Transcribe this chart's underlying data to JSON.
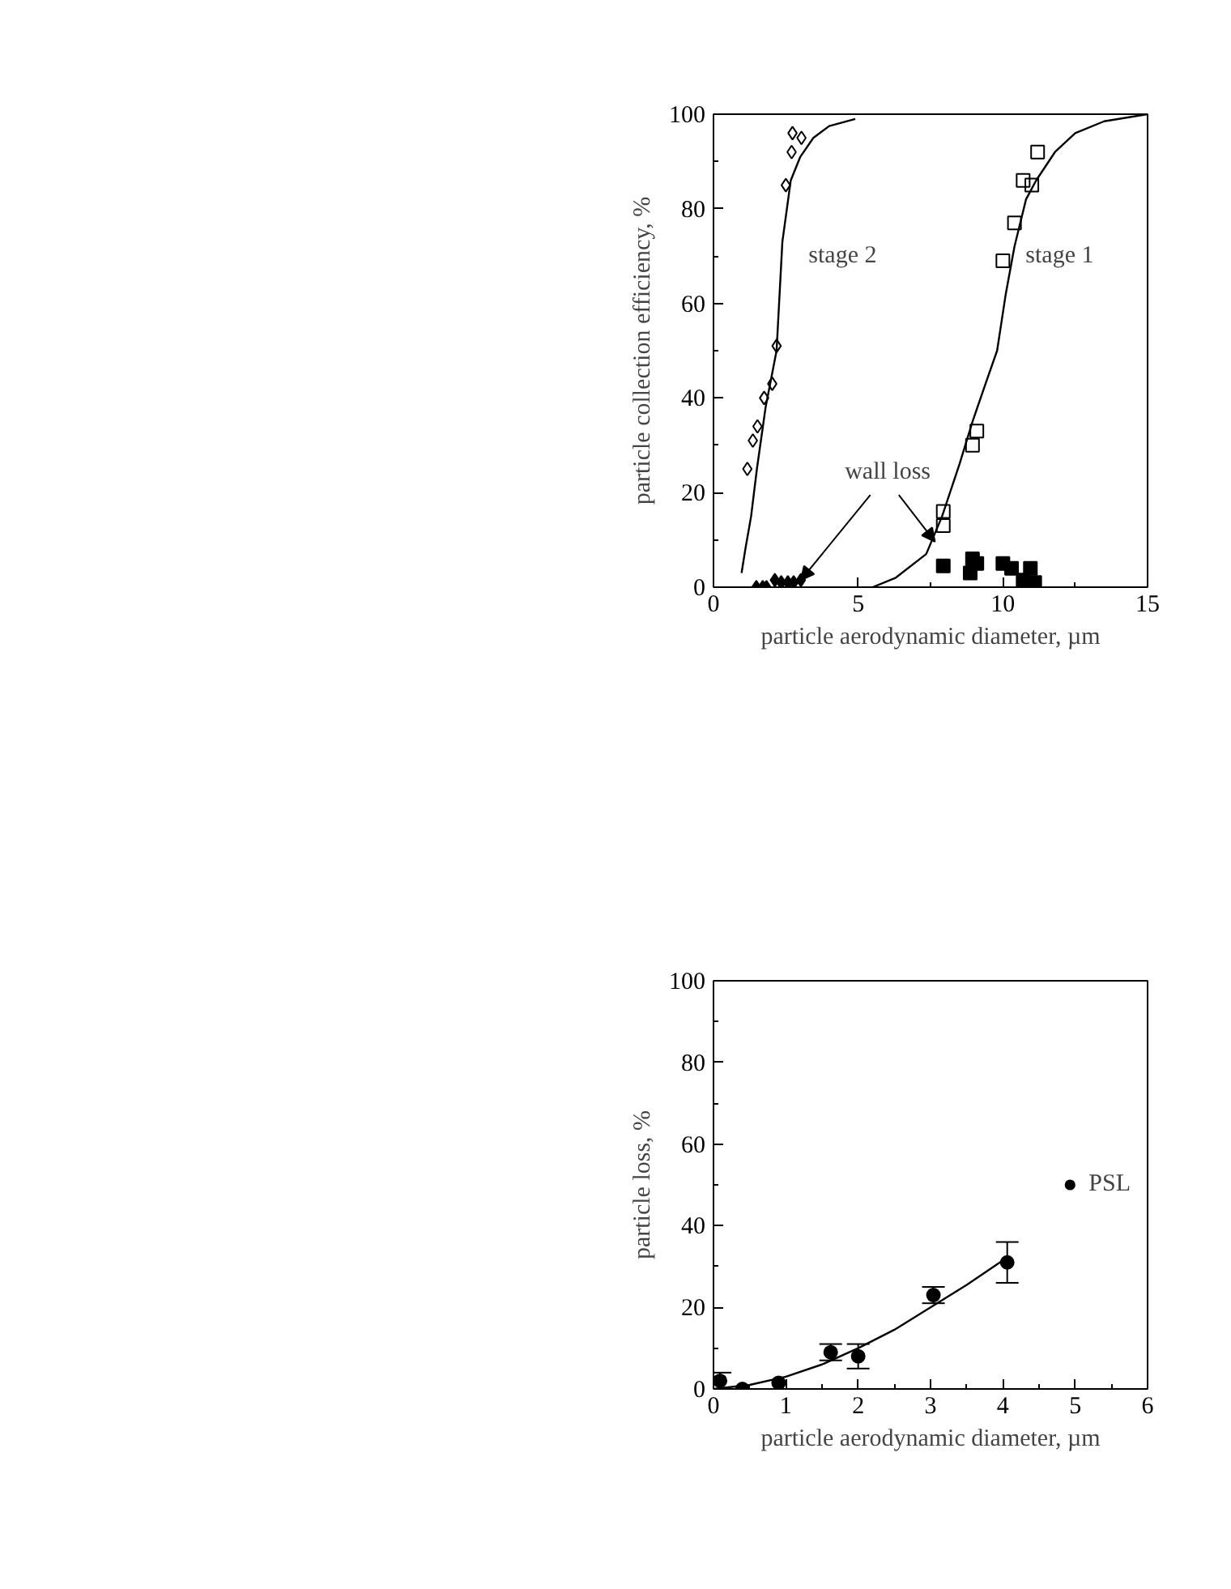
{
  "chart_data": [
    {
      "type": "scatter",
      "xlabel": "particle aerodynamic diameter, µm",
      "ylabel": "particle collection efficiency, %",
      "xlim": [
        0,
        15
      ],
      "ylim": [
        0,
        100
      ],
      "xticks": [
        0,
        5,
        10,
        15
      ],
      "yticks": [
        0,
        20,
        40,
        60,
        80,
        100
      ],
      "grid": false,
      "legend": false,
      "series": [
        {
          "type": "line",
          "color": "#000000",
          "x": [
            0.97,
            1.1,
            1.3,
            1.5,
            1.8,
            2.18,
            2.38,
            2.67,
            3.0,
            3.45,
            4.0,
            4.9
          ],
          "values": [
            3,
            8,
            15,
            25,
            38,
            50,
            73,
            86,
            91,
            95,
            97.5,
            99
          ]
        },
        {
          "type": "line",
          "color": "#000000",
          "x": [
            5.5,
            6.3,
            7.35,
            7.9,
            8.5,
            8.95,
            9.4,
            9.8,
            10.1,
            10.4,
            10.8,
            11.15,
            11.8,
            12.5,
            13.5,
            15
          ],
          "values": [
            0,
            2,
            7,
            15,
            26,
            35,
            43,
            50,
            62,
            72,
            82,
            86,
            92,
            96,
            98.5,
            100
          ]
        },
        {
          "name": "stage 2",
          "marker": "diamond",
          "color": "#000000",
          "x": [
            1.17,
            1.36,
            1.52,
            1.75,
            2.03,
            2.18,
            2.5,
            2.7,
            2.73,
            3.04
          ],
          "values": [
            25,
            31,
            34,
            40,
            43,
            51,
            85,
            92,
            96,
            95
          ]
        },
        {
          "name": "stage 1",
          "marker": "square",
          "color": "#000000",
          "x": [
            7.94,
            7.94,
            8.95,
            9.1,
            10.0,
            10.4,
            10.7,
            11.0,
            11.2
          ],
          "values": [
            16,
            13,
            30,
            33,
            69,
            77,
            86,
            85,
            92
          ]
        },
        {
          "marker": "diamond",
          "color": "#000000",
          "x": [
            1.48,
            1.7,
            1.83,
            2.12,
            2.34,
            2.57,
            2.77,
            3.02
          ],
          "values": [
            0,
            0,
            0,
            1.5,
            1,
            1,
            1,
            1.5
          ]
        },
        {
          "marker": "square",
          "color": "#000000",
          "x": [
            7.94,
            8.87,
            8.95,
            9.1,
            10.0,
            10.3,
            10.7,
            10.95,
            11.1
          ],
          "values": [
            4.5,
            3,
            6,
            5,
            5,
            4,
            1.5,
            4,
            1
          ]
        }
      ],
      "annotations": [
        {
          "text": "wall loss",
          "x": 3.02,
          "y": 1.5
        }
      ]
    },
    {
      "type": "scatter",
      "xlabel": "particle aerodynamic diameter, µm",
      "ylabel": "particle loss, %",
      "xlim": [
        0,
        6
      ],
      "ylim": [
        0,
        100
      ],
      "xticks": [
        0,
        1,
        2,
        3,
        4,
        5,
        6
      ],
      "yticks": [
        0,
        20,
        40,
        60,
        80,
        100
      ],
      "grid": false,
      "legend": "right",
      "series": [
        {
          "name": "PSL",
          "marker": "circle",
          "color": "#000000",
          "x": [
            0.09,
            0.4,
            0.9,
            1.62,
            2.0,
            3.04,
            4.06
          ],
          "values": [
            2,
            0,
            1.5,
            9,
            8,
            23,
            31
          ],
          "errors": [
            2,
            null,
            null,
            2,
            3,
            2,
            5
          ]
        },
        {
          "type": "line",
          "color": "#000000",
          "x": [
            0,
            0.5,
            1,
            1.5,
            2,
            2.5,
            3,
            3.5,
            4
          ],
          "values": [
            0,
            1,
            3,
            6,
            10,
            14.5,
            20,
            25.5,
            31.5
          ]
        }
      ]
    }
  ]
}
